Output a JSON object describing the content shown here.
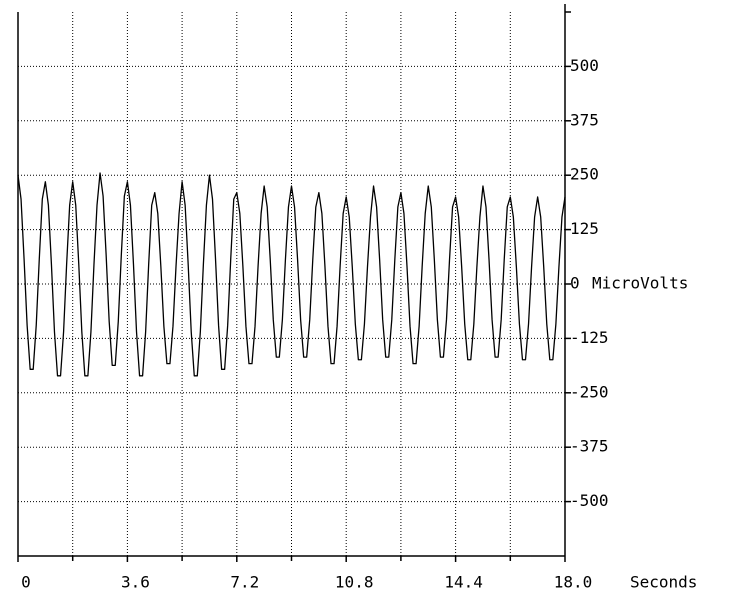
{
  "chart_data": {
    "type": "line",
    "x_label": "Seconds",
    "y_label": "MicroVolts",
    "xlim": [
      0,
      18
    ],
    "ylim": [
      -625,
      625
    ],
    "xticks": [
      0,
      3.6,
      7.2,
      10.8,
      14.4,
      {
        "value": 18,
        "label": "18.0"
      }
    ],
    "minor_xticks": [
      1.8,
      5.4,
      9,
      12.6,
      16.2
    ],
    "yticks": [
      500,
      375,
      250,
      125,
      0,
      -125,
      -250,
      -375,
      -500
    ],
    "grid": true,
    "x": [
      0,
      0.1,
      0.2,
      0.3,
      0.4,
      0.5,
      0.6,
      0.7,
      0.8,
      0.9,
      1,
      1.1,
      1.2,
      1.3,
      1.4,
      1.5,
      1.6,
      1.7,
      1.8,
      1.9,
      2,
      2.1,
      2.2,
      2.3,
      2.4,
      2.5,
      2.6,
      2.7,
      2.8,
      2.9,
      3,
      3.1,
      3.2,
      3.3,
      3.4,
      3.5,
      3.6,
      3.7,
      3.8,
      3.9,
      4,
      4.1,
      4.2,
      4.3,
      4.4,
      4.5,
      4.6,
      4.7,
      4.8,
      4.9,
      5,
      5.1,
      5.2,
      5.3,
      5.4,
      5.5,
      5.6,
      5.7,
      5.8,
      5.9,
      6,
      6.1,
      6.2,
      6.3,
      6.4,
      6.5,
      6.6,
      6.7,
      6.8,
      6.9,
      7,
      7.1,
      7.2,
      7.3,
      7.4,
      7.5,
      7.6,
      7.7,
      7.8,
      7.9,
      8,
      8.1,
      8.2,
      8.3,
      8.4,
      8.5,
      8.6,
      8.7,
      8.8,
      8.9,
      9,
      9.1,
      9.2,
      9.3,
      9.4,
      9.5,
      9.6,
      9.7,
      9.8,
      9.9,
      10,
      10.1,
      10.2,
      10.3,
      10.4,
      10.5,
      10.6,
      10.7,
      10.8,
      10.9,
      11,
      11.1,
      11.2,
      11.3,
      11.4,
      11.5,
      11.6,
      11.7,
      11.8,
      11.9,
      12,
      12.1,
      12.2,
      12.3,
      12.4,
      12.5,
      12.6,
      12.7,
      12.8,
      12.9,
      13,
      13.1,
      13.2,
      13.3,
      13.4,
      13.5,
      13.6,
      13.7,
      13.8,
      13.9,
      14,
      14.1,
      14.2,
      14.3,
      14.4,
      14.5,
      14.6,
      14.7,
      14.8,
      14.9,
      15,
      15.1,
      15.2,
      15.3,
      15.4,
      15.5,
      15.6,
      15.7,
      15.8,
      15.9,
      16,
      16.1,
      16.2,
      16.3,
      16.4,
      16.5,
      16.6,
      16.7,
      16.8,
      16.9,
      17,
      17.1,
      17.2,
      17.3,
      17.4,
      17.5,
      17.6,
      17.7,
      17.8,
      17.9,
      18
    ],
    "series": [
      {
        "color": "#000000",
        "values": [
          250,
          195,
          57,
          -95,
          -196,
          -196,
          -95,
          57,
          195,
          235,
          181,
          45,
          -110,
          -211,
          -211,
          -110,
          45,
          181,
          235,
          181,
          45,
          -110,
          -211,
          -211,
          -110,
          45,
          181,
          255,
          202,
          67,
          -86,
          -187,
          -187,
          -86,
          67,
          202,
          235,
          181,
          45,
          -110,
          -211,
          -211,
          -110,
          45,
          181,
          210,
          162,
          41,
          -97,
          -183,
          -183,
          -97,
          41,
          162,
          235,
          181,
          45,
          -110,
          -211,
          -211,
          -110,
          45,
          181,
          250,
          195,
          57,
          -95,
          -196,
          -196,
          -95,
          57,
          195,
          210,
          162,
          41,
          -97,
          -183,
          -183,
          -97,
          41,
          162,
          225,
          177,
          56,
          -82,
          -168,
          -168,
          -82,
          56,
          177,
          225,
          177,
          56,
          -82,
          -168,
          -168,
          -82,
          56,
          177,
          210,
          162,
          41,
          -97,
          -183,
          -183,
          -97,
          41,
          162,
          200,
          154,
          39,
          -92,
          -174,
          -174,
          -92,
          39,
          154,
          225,
          177,
          56,
          -82,
          -168,
          -168,
          -82,
          56,
          177,
          210,
          162,
          41,
          -97,
          -183,
          -183,
          -97,
          41,
          162,
          225,
          177,
          56,
          -82,
          -168,
          -168,
          -82,
          56,
          177,
          200,
          154,
          39,
          -92,
          -174,
          -174,
          -92,
          39,
          154,
          225,
          177,
          56,
          -82,
          -168,
          -168,
          -82,
          56,
          177,
          200,
          154,
          39,
          -92,
          -174,
          -174,
          -92,
          39,
          154,
          200,
          154,
          39,
          -92,
          -174,
          -174,
          -92,
          39,
          154,
          200
        ]
      }
    ]
  }
}
